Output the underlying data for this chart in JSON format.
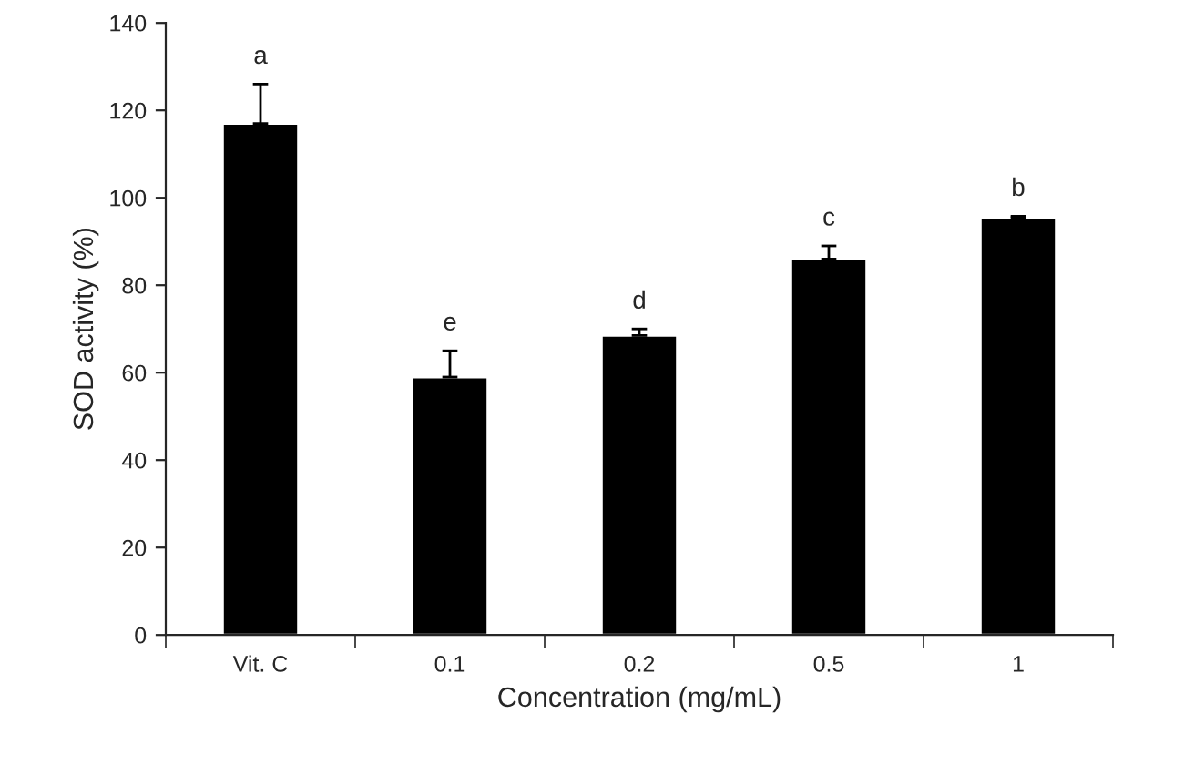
{
  "chart_data": {
    "type": "bar",
    "xlabel": "Concentration (mg/mL)",
    "ylabel": "SOD activity (%)",
    "categories": [
      "Vit. C",
      "0.1",
      "0.2",
      "0.5",
      "1"
    ],
    "values": [
      117,
      59,
      68.5,
      86,
      95.5
    ],
    "errors": [
      9,
      6,
      1.5,
      3,
      0.3
    ],
    "color": "#000000",
    "ylim": [
      0,
      140
    ],
    "yticks": [
      0,
      20,
      40,
      60,
      80,
      100,
      120,
      140
    ],
    "grid": false,
    "annotations": [
      {
        "text": "a",
        "x": "Vit. C",
        "y": 126
      },
      {
        "text": "e",
        "x": "0.1",
        "y": 65
      },
      {
        "text": "d",
        "x": "0.2",
        "y": 70
      },
      {
        "text": "c",
        "x": "0.5",
        "y": 89
      },
      {
        "text": "b",
        "x": "1",
        "y": 95.8
      }
    ]
  }
}
